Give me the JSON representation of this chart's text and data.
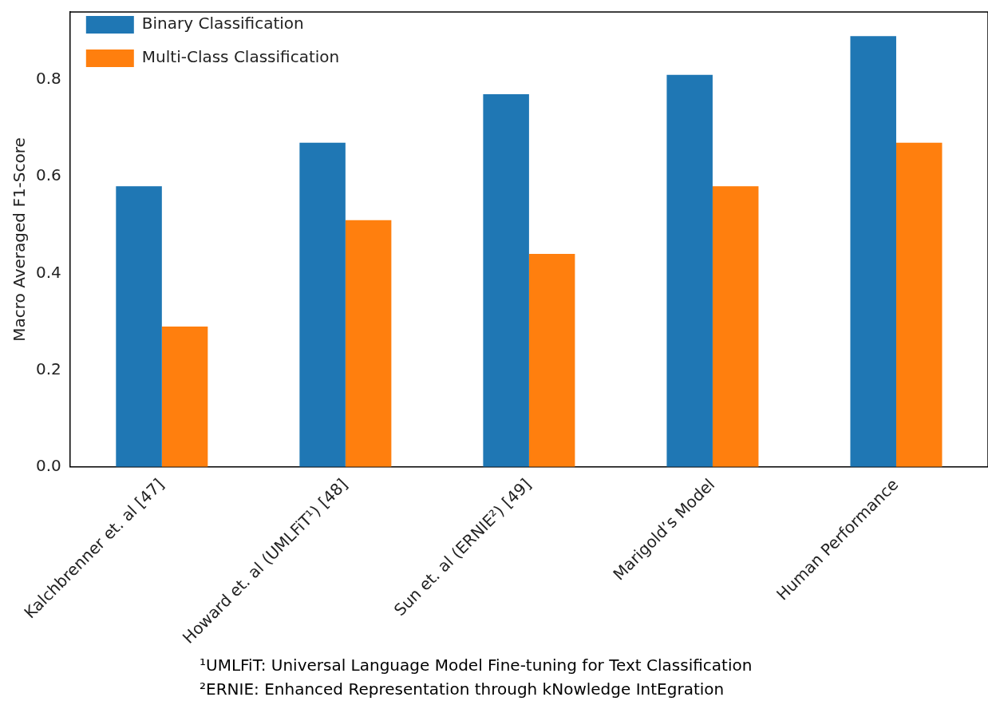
{
  "chart_data": {
    "type": "bar",
    "ylabel": "Macro Averaged F1-Score",
    "categories": [
      "Kalchbrenner et. al [47]",
      "Howard et. al (UMLFiT¹) [48]",
      "Sun et. al (ERNIE²) [49]",
      "Marigold’s Model",
      "Human Performance"
    ],
    "series": [
      {
        "name": "Binary Classification",
        "color": "#1f77b4",
        "values": [
          0.58,
          0.67,
          0.77,
          0.81,
          0.89
        ]
      },
      {
        "name": "Multi-Class Classification",
        "color": "#ff7f0e",
        "values": [
          0.29,
          0.51,
          0.44,
          0.58,
          0.67
        ]
      }
    ],
    "ylim": [
      0,
      0.94
    ],
    "yticks": [
      {
        "value": 0,
        "label": "0.0"
      },
      {
        "value": 0.2,
        "label": "0.2"
      },
      {
        "value": 0.4,
        "label": "0.4"
      },
      {
        "value": 0.6,
        "label": "0.6"
      },
      {
        "value": 0.8,
        "label": "0.8"
      }
    ],
    "grid": false,
    "legend": "top left",
    "annotations": [
      "¹UMLFiT: Universal Language Model Fine-tuning for Text Classification",
      "²ERNIE: Enhanced Representation through kNowledge IntEgration"
    ]
  }
}
